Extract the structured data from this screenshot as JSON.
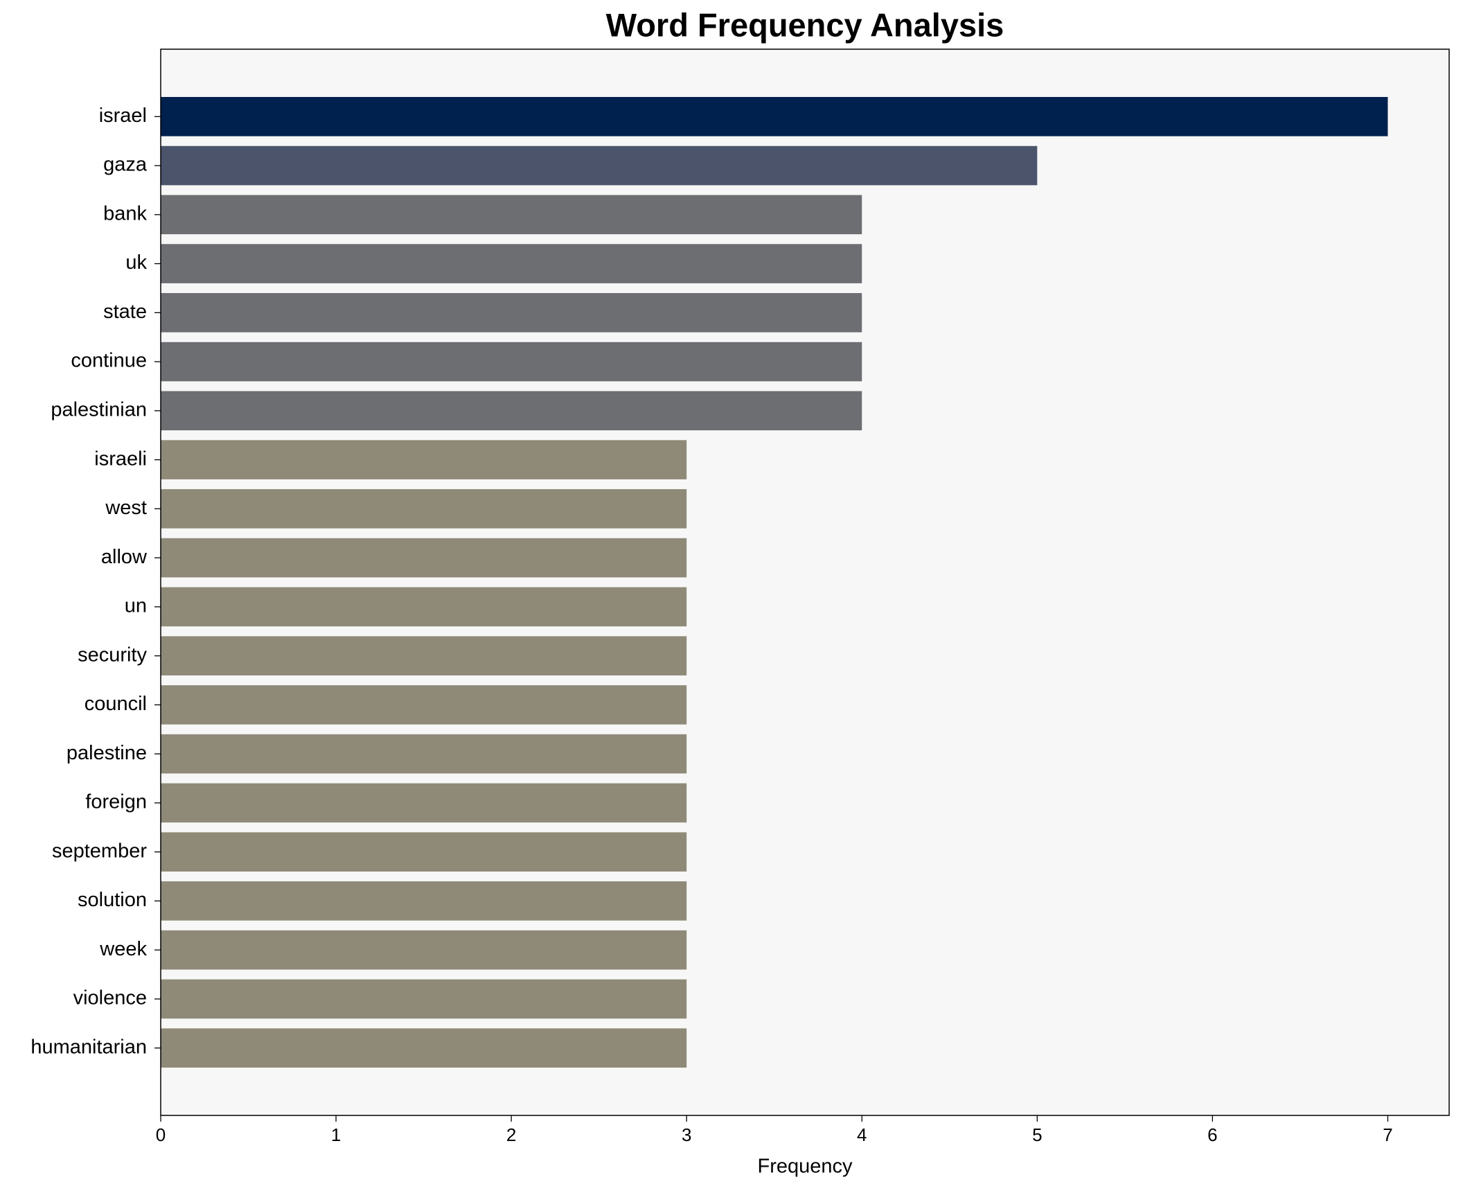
{
  "chart_data": {
    "type": "bar",
    "orientation": "horizontal",
    "title": "Word Frequency Analysis",
    "x_label": "Frequency",
    "categories": [
      "israel",
      "gaza",
      "bank",
      "uk",
      "state",
      "continue",
      "palestinian",
      "israeli",
      "west",
      "allow",
      "un",
      "security",
      "council",
      "palestine",
      "foreign",
      "september",
      "solution",
      "week",
      "violence",
      "humanitarian"
    ],
    "values": [
      7,
      5,
      4,
      4,
      4,
      4,
      4,
      3,
      3,
      3,
      3,
      3,
      3,
      3,
      3,
      3,
      3,
      3,
      3,
      3
    ],
    "colors": [
      "#00204e",
      "#4b546b",
      "#6d6e72",
      "#6d6e72",
      "#6d6e72",
      "#6d6e72",
      "#6d6e72",
      "#8f8a78",
      "#8f8a78",
      "#8f8a78",
      "#8f8a78",
      "#8f8a78",
      "#8f8a78",
      "#8f8a78",
      "#8f8a78",
      "#8f8a78",
      "#8f8a78",
      "#8f8a78",
      "#8f8a78",
      "#8f8a78"
    ],
    "xlim": [
      0,
      7.35
    ],
    "xticks": [
      0,
      1,
      2,
      3,
      4,
      5,
      6,
      7
    ],
    "grid": false
  }
}
